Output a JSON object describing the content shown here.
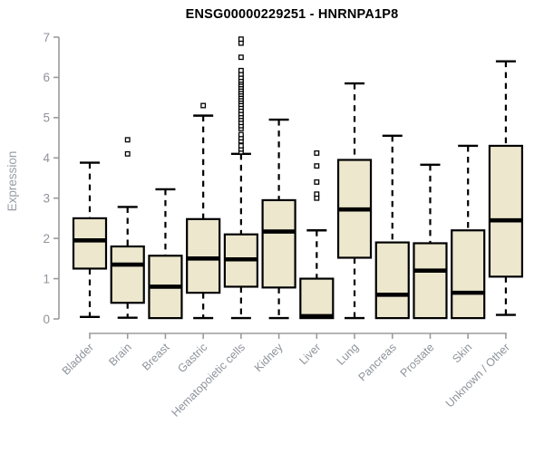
{
  "colors": {
    "box_fill": "#ece7cd",
    "box_stroke": "#000000",
    "median": "#000000",
    "whisker": "#000000",
    "axis": "#9b9b9b",
    "tick_text": "#8e939a",
    "title_text": "#000000"
  },
  "chart_data": {
    "type": "boxplot",
    "title": "ENSG00000229251 - HNRNPA1P8",
    "ylabel": "Expression",
    "ylim": [
      0,
      7
    ],
    "yticks": [
      0,
      1,
      2,
      3,
      4,
      5,
      6,
      7
    ],
    "grid": false,
    "categories": [
      "Bladder",
      "Brain",
      "Breast",
      "Gastric",
      "Hematopoietic cells",
      "Kidney",
      "Liver",
      "Lung",
      "Pancreas",
      "Prostate",
      "Skin",
      "Unknown / Other"
    ],
    "boxes": [
      {
        "category": "Bladder",
        "whisker_low": 0.05,
        "q1": 1.25,
        "median": 1.95,
        "q3": 2.5,
        "whisker_high": 3.88,
        "outliers": []
      },
      {
        "category": "Brain",
        "whisker_low": 0.03,
        "q1": 0.4,
        "median": 1.35,
        "q3": 1.8,
        "whisker_high": 2.78,
        "outliers": [
          4.1,
          4.45
        ]
      },
      {
        "category": "Breast",
        "whisker_low": 0.0,
        "q1": 0.02,
        "median": 0.8,
        "q3": 1.57,
        "whisker_high": 3.22,
        "outliers": []
      },
      {
        "category": "Gastric",
        "whisker_low": 0.02,
        "q1": 0.65,
        "median": 1.5,
        "q3": 2.48,
        "whisker_high": 5.05,
        "outliers": [
          5.3
        ]
      },
      {
        "category": "Hematopoietic cells",
        "whisker_low": 0.02,
        "q1": 0.8,
        "median": 1.48,
        "q3": 2.1,
        "whisker_high": 4.1,
        "outliers": [
          4.15,
          4.22,
          4.3,
          4.42,
          4.5,
          4.58,
          4.73,
          4.8,
          4.88,
          4.96,
          5.03,
          5.1,
          5.18,
          5.26,
          5.33,
          5.4,
          5.46,
          5.52,
          5.58,
          5.64,
          5.7,
          5.76,
          5.82,
          5.88,
          5.93,
          6.0,
          6.08,
          6.17,
          6.5,
          6.85,
          6.95
        ]
      },
      {
        "category": "Kidney",
        "whisker_low": 0.02,
        "q1": 0.78,
        "median": 2.17,
        "q3": 2.95,
        "whisker_high": 4.95,
        "outliers": []
      },
      {
        "category": "Liver",
        "whisker_low": 0.0,
        "q1": 0.02,
        "median": 0.07,
        "q3": 1.0,
        "whisker_high": 2.2,
        "outliers": [
          3.0,
          3.1,
          3.4,
          3.8,
          4.12
        ]
      },
      {
        "category": "Lung",
        "whisker_low": 0.02,
        "q1": 1.52,
        "median": 2.72,
        "q3": 3.95,
        "whisker_high": 5.85,
        "outliers": []
      },
      {
        "category": "Pancreas",
        "whisker_low": 0.0,
        "q1": 0.02,
        "median": 0.6,
        "q3": 1.9,
        "whisker_high": 4.55,
        "outliers": []
      },
      {
        "category": "Prostate",
        "whisker_low": 0.0,
        "q1": 0.02,
        "median": 1.2,
        "q3": 1.88,
        "whisker_high": 3.83,
        "outliers": []
      },
      {
        "category": "Skin",
        "whisker_low": 0.0,
        "q1": 0.02,
        "median": 0.65,
        "q3": 2.2,
        "whisker_high": 4.3,
        "outliers": []
      },
      {
        "category": "Unknown / Other",
        "whisker_low": 0.1,
        "q1": 1.05,
        "median": 2.45,
        "q3": 4.3,
        "whisker_high": 6.4,
        "outliers": []
      }
    ]
  }
}
